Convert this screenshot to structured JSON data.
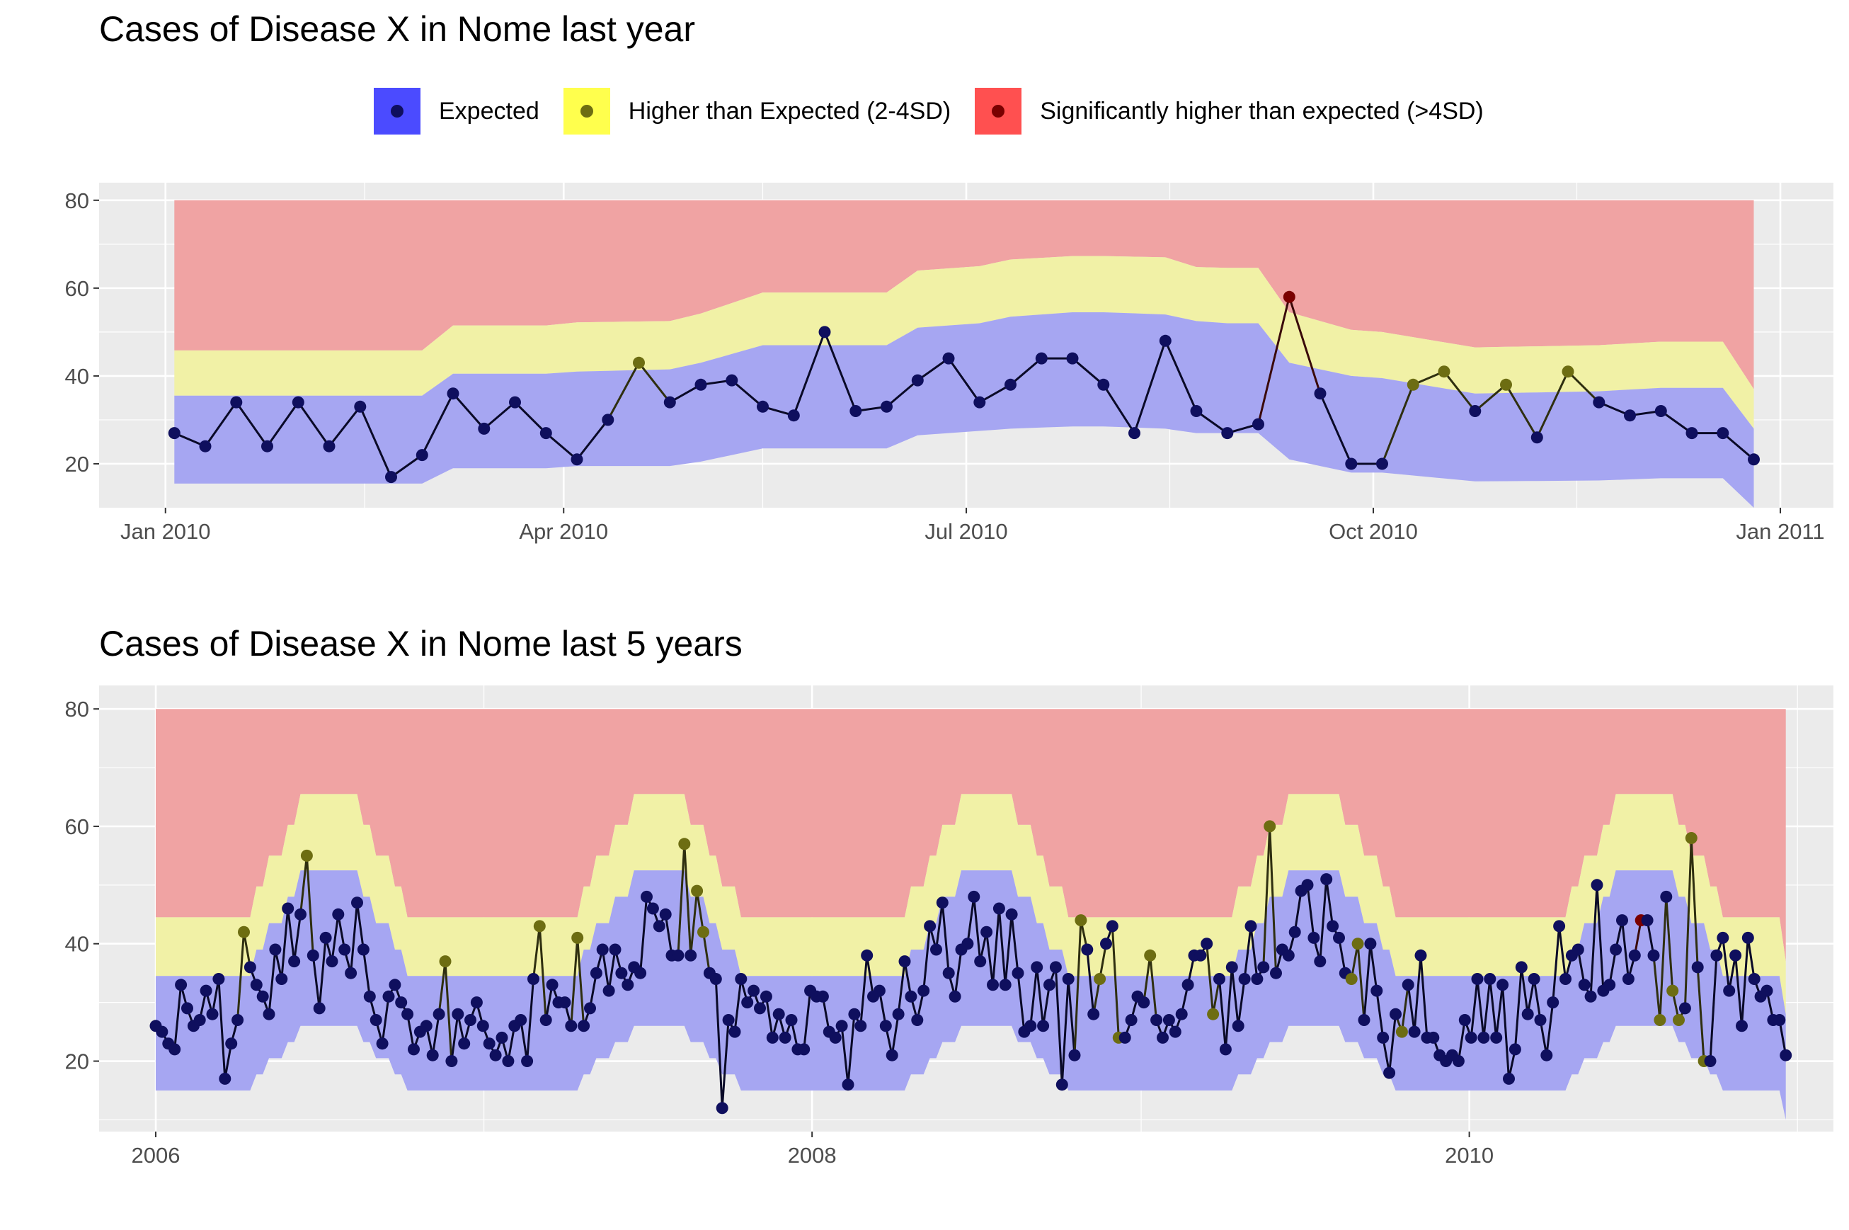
{
  "legend": {
    "items": [
      {
        "label": "Expected",
        "fill": "#4b4bff",
        "dot": "#0f0f5e"
      },
      {
        "label": "Higher than Expected (2-4SD)",
        "fill": "#ffff4d",
        "dot": "#6d6d12"
      },
      {
        "label": "Significantly higher than expected (>4SD)",
        "fill": "#ff5050",
        "dot": "#7a0000"
      }
    ]
  },
  "colors": {
    "panel_bg": "#ebebeb",
    "grid": "#ffffff",
    "band_expected": "#a6a6f2",
    "band_higher": "#f1f1a6",
    "band_significant": "#f0a3a3",
    "line": "#0a0a28"
  },
  "chart_data": [
    {
      "type": "line",
      "title": "Cases of Disease X in Nome last year",
      "xlabel": "",
      "ylabel": "",
      "x_ticks": [
        "Jan 2010",
        "Apr 2010",
        "Jul 2010",
        "Oct 2010",
        "Jan 2011"
      ],
      "y_ticks": [
        20,
        40,
        60,
        80
      ],
      "ylim": [
        10,
        84
      ],
      "xlim": [
        "2009-12-17",
        "2011-01-13"
      ],
      "grid": true,
      "legend_position": "top",
      "bands": {
        "x": [
          "2010-01-03",
          "2010-01-31",
          "2010-02-28",
          "2010-03-07",
          "2010-03-28",
          "2010-04-04",
          "2010-04-25",
          "2010-05-02",
          "2010-05-16",
          "2010-05-23",
          "2010-06-13",
          "2010-06-20",
          "2010-07-04",
          "2010-07-11",
          "2010-07-25",
          "2010-08-01",
          "2010-08-15",
          "2010-08-22",
          "2010-08-29",
          "2010-09-05",
          "2010-09-12",
          "2010-09-26",
          "2010-10-03",
          "2010-10-24",
          "2010-11-21",
          "2010-12-05",
          "2010-12-19",
          "2010-12-26"
        ],
        "expected_low": [
          15.5,
          15.5,
          15.5,
          19,
          19,
          19.5,
          19.5,
          20.5,
          23.5,
          23.5,
          23.5,
          26.5,
          27.5,
          28,
          28.5,
          28.5,
          28,
          27,
          27,
          27,
          21,
          18,
          18,
          16,
          16.2,
          16.7,
          16.7,
          10
        ],
        "expected_high": [
          35.5,
          35.5,
          35.5,
          40.5,
          40.5,
          41,
          41.5,
          43,
          47,
          47,
          47,
          51,
          52,
          53.5,
          54.5,
          54.5,
          54,
          52.5,
          52,
          52,
          43,
          40,
          39.5,
          36,
          36.5,
          37.3,
          37.3,
          28
        ],
        "higher_high": [
          45.8,
          45.8,
          45.8,
          51.5,
          51.5,
          52.2,
          52.5,
          54.2,
          59,
          59,
          59,
          64,
          65,
          66.5,
          67.3,
          67.3,
          67,
          64.8,
          64.6,
          64.6,
          54.5,
          50.5,
          50,
          46.5,
          47,
          47.8,
          47.8,
          37
        ],
        "significant_high": [
          80,
          80,
          80,
          80,
          80,
          80,
          80,
          80,
          80,
          80,
          80,
          80,
          80,
          80,
          80,
          80,
          80,
          80,
          80,
          80,
          80,
          80,
          80,
          80,
          80,
          80,
          80,
          80
        ]
      },
      "series": [
        {
          "x": [
            "2010-01-03",
            "2010-01-10",
            "2010-01-17",
            "2010-01-24",
            "2010-01-31",
            "2010-02-07",
            "2010-02-14",
            "2010-02-21",
            "2010-02-28",
            "2010-03-07",
            "2010-03-14",
            "2010-03-21",
            "2010-03-28",
            "2010-04-04",
            "2010-04-11",
            "2010-04-18",
            "2010-04-25",
            "2010-05-02",
            "2010-05-09",
            "2010-05-16",
            "2010-05-23",
            "2010-05-30",
            "2010-06-06",
            "2010-06-13",
            "2010-06-20",
            "2010-06-27",
            "2010-07-04",
            "2010-07-11",
            "2010-07-18",
            "2010-07-25",
            "2010-08-01",
            "2010-08-08",
            "2010-08-15",
            "2010-08-22",
            "2010-08-29",
            "2010-09-05",
            "2010-09-12",
            "2010-09-19",
            "2010-09-26",
            "2010-10-03",
            "2010-10-10",
            "2010-10-17",
            "2010-10-24",
            "2010-10-31",
            "2010-11-07",
            "2010-11-14",
            "2010-11-21",
            "2010-11-28",
            "2010-12-05",
            "2010-12-12",
            "2010-12-19",
            "2010-12-26"
          ],
          "y": [
            27,
            24,
            34,
            24,
            34,
            24,
            33,
            17,
            22,
            36,
            28,
            34,
            27,
            21,
            30,
            43,
            34,
            38,
            39,
            33,
            31,
            50,
            32,
            33,
            39,
            44,
            34,
            38,
            44,
            44,
            38,
            27,
            48,
            32,
            27,
            29,
            58,
            36,
            20,
            20,
            38,
            41,
            32,
            38,
            26,
            41,
            34,
            31,
            32,
            27,
            27,
            21
          ],
          "status": [
            "e",
            "e",
            "e",
            "e",
            "e",
            "e",
            "e",
            "e",
            "e",
            "e",
            "e",
            "e",
            "e",
            "e",
            "e",
            "h",
            "e",
            "e",
            "e",
            "e",
            "e",
            "e",
            "e",
            "e",
            "e",
            "e",
            "e",
            "e",
            "e",
            "e",
            "e",
            "e",
            "e",
            "e",
            "e",
            "e",
            "s",
            "e",
            "e",
            "e",
            "h",
            "h",
            "e",
            "h",
            "e",
            "h",
            "e",
            "e",
            "e",
            "e",
            "e",
            "e"
          ]
        }
      ]
    },
    {
      "type": "line",
      "title": "Cases of Disease X in Nome last 5 years",
      "xlabel": "",
      "ylabel": "",
      "x_ticks": [
        "2006",
        "2008",
        "2010"
      ],
      "y_ticks": [
        20,
        40,
        60,
        80
      ],
      "ylim": [
        8,
        84
      ],
      "xlim": [
        "2005-10-30",
        "2011-02-10"
      ],
      "grid": true,
      "bands_note": "seasonal",
      "series": [
        {
          "start": "2006-01-01",
          "step_days": 7,
          "y": [
            26,
            25,
            23,
            22,
            33,
            29,
            26,
            27,
            32,
            28,
            34,
            17,
            23,
            27,
            42,
            36,
            33,
            31,
            28,
            39,
            34,
            46,
            37,
            45,
            55,
            38,
            29,
            41,
            37,
            45,
            39,
            35,
            47,
            39,
            31,
            27,
            23,
            31,
            33,
            30,
            28,
            22,
            25,
            26,
            21,
            28,
            37,
            20,
            28,
            23,
            27,
            30,
            26,
            23,
            21,
            24,
            20,
            26,
            27,
            20,
            34,
            43,
            27,
            33,
            30,
            30,
            26,
            41,
            26,
            29,
            35,
            39,
            32,
            39,
            35,
            33,
            36,
            35,
            48,
            46,
            43,
            45,
            38,
            38,
            57,
            38,
            49,
            42,
            35,
            34,
            12,
            27,
            25,
            34,
            30,
            32,
            29,
            31,
            24,
            28,
            24,
            27,
            22,
            22,
            32,
            31,
            31,
            25,
            24,
            26,
            16,
            28,
            26,
            38,
            31,
            32,
            26,
            21,
            28,
            37,
            31,
            27,
            32,
            43,
            39,
            47,
            35,
            31,
            39,
            40,
            48,
            37,
            42,
            33,
            46,
            33,
            45,
            35,
            25,
            26,
            36,
            26,
            33,
            36,
            16,
            34,
            21,
            44,
            39,
            28,
            34,
            40,
            43,
            24,
            24,
            27,
            31,
            30,
            38,
            27,
            24,
            27,
            25,
            28,
            33,
            38,
            38,
            40,
            28,
            34,
            22,
            36,
            26,
            34,
            43,
            34,
            36,
            60,
            35,
            39,
            38,
            42,
            49,
            50,
            41,
            37,
            51,
            43,
            41,
            35,
            34,
            40,
            27,
            40,
            32,
            24,
            18,
            28,
            25,
            33,
            25,
            38,
            24,
            24,
            21,
            20,
            21,
            20,
            27,
            24,
            34,
            24,
            34,
            24,
            33,
            17,
            22,
            36,
            28,
            34,
            27,
            21,
            30,
            43,
            34,
            38,
            39,
            33,
            31,
            50,
            32,
            33,
            39,
            44,
            34,
            38,
            44,
            44,
            38,
            27,
            48,
            32,
            27,
            29,
            58,
            36,
            20,
            20,
            38,
            41,
            32,
            38,
            26,
            41,
            34,
            31,
            32,
            27,
            27,
            21
          ],
          "higher_idx": [
            14,
            24,
            46,
            61,
            67,
            84,
            86,
            87,
            147,
            150,
            153,
            158,
            168,
            177,
            190,
            191,
            198,
            239,
            241,
            242,
            244,
            246
          ],
          "significant_idx": [
            236
          ]
        }
      ]
    }
  ]
}
